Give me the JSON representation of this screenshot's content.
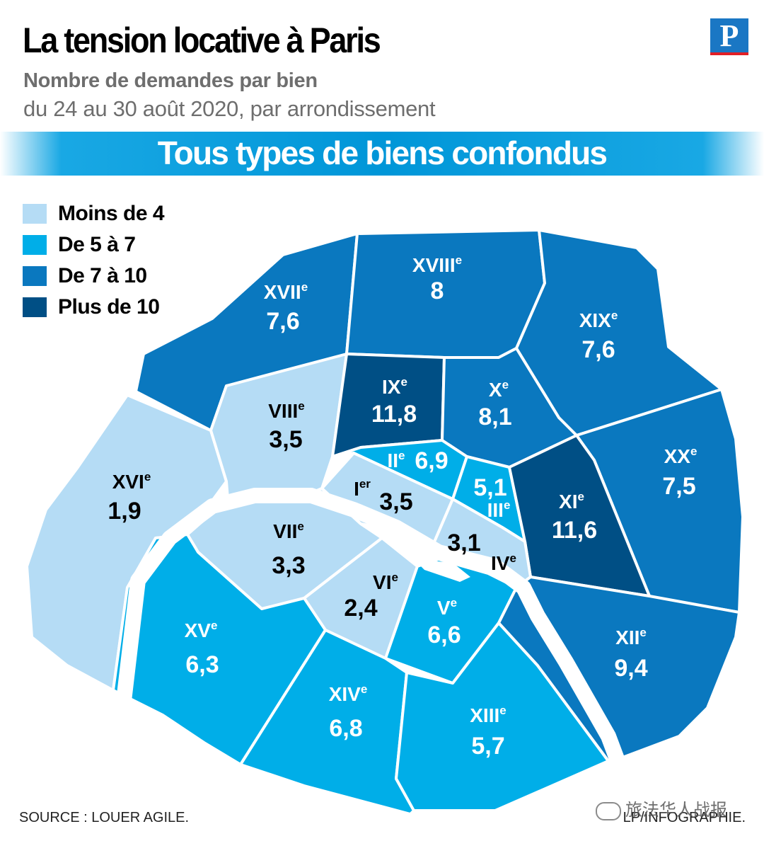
{
  "header": {
    "title": "La tension locative à Paris",
    "subtitle_line1": "Nombre de demandes par bien",
    "subtitle_line2": "du 24 au 30 août 2020,  par arrondissement",
    "logo_letter": "P",
    "banner": "Tous types de biens confondus"
  },
  "legend": [
    {
      "label": "Moins de 4",
      "color": "#b5dcf5"
    },
    {
      "label": "De 5 à 7",
      "color": "#00aee8"
    },
    {
      "label": "De 7 à 10",
      "color": "#0a78bf"
    },
    {
      "label": "Plus de 10",
      "color": "#004f85"
    }
  ],
  "map": {
    "river_color": "#ffffff",
    "arrondissements": [
      {
        "id": "i",
        "roman": "I",
        "sup": "er",
        "value": "3,5",
        "class": "Moins de 4"
      },
      {
        "id": "ii",
        "roman": "II",
        "sup": "e",
        "value": "6,9",
        "class": "De 5 à 7"
      },
      {
        "id": "iii",
        "roman": "III",
        "sup": "e",
        "value": "5,1",
        "class": "De 5 à 7"
      },
      {
        "id": "iv",
        "roman": "IV",
        "sup": "e",
        "value": "3,1",
        "class": "Moins de 4"
      },
      {
        "id": "v",
        "roman": "V",
        "sup": "e",
        "value": "6,6",
        "class": "De 5 à 7"
      },
      {
        "id": "vi",
        "roman": "VI",
        "sup": "e",
        "value": "2,4",
        "class": "Moins de 4"
      },
      {
        "id": "vii",
        "roman": "VII",
        "sup": "e",
        "value": "3,3",
        "class": "Moins de 4"
      },
      {
        "id": "viii",
        "roman": "VIII",
        "sup": "e",
        "value": "3,5",
        "class": "Moins de 4"
      },
      {
        "id": "ix",
        "roman": "IX",
        "sup": "e",
        "value": "11,8",
        "class": "Plus de 10"
      },
      {
        "id": "x",
        "roman": "X",
        "sup": "e",
        "value": "8,1",
        "class": "De 7 à 10"
      },
      {
        "id": "xi",
        "roman": "XI",
        "sup": "e",
        "value": "11,6",
        "class": "Plus de 10"
      },
      {
        "id": "xii",
        "roman": "XII",
        "sup": "e",
        "value": "9,4",
        "class": "De 7 à 10"
      },
      {
        "id": "xiii",
        "roman": "XIII",
        "sup": "e",
        "value": "5,7",
        "class": "De 5 à 7"
      },
      {
        "id": "xiv",
        "roman": "XIV",
        "sup": "e",
        "value": "6,8",
        "class": "De 5 à 7"
      },
      {
        "id": "xv",
        "roman": "XV",
        "sup": "e",
        "value": "6,3",
        "class": "De 5 à 7"
      },
      {
        "id": "xvi",
        "roman": "XVI",
        "sup": "e",
        "value": "1,9",
        "class": "Moins de 4"
      },
      {
        "id": "xvii",
        "roman": "XVII",
        "sup": "e",
        "value": "7,6",
        "class": "De 7 à 10"
      },
      {
        "id": "xviii",
        "roman": "XVIII",
        "sup": "e",
        "value": "8",
        "class": "De 7 à 10"
      },
      {
        "id": "xix",
        "roman": "XIX",
        "sup": "e",
        "value": "7,6",
        "class": "De 7 à 10"
      },
      {
        "id": "xx",
        "roman": "XX",
        "sup": "e",
        "value": "7,5",
        "class": "De 7 à 10"
      }
    ]
  },
  "footer": {
    "source": "SOURCE : LOUER AGILE.",
    "credit": "LP/INFOGRAPHIE.",
    "watermark": "旅法华人战报",
    "watermark_icon": "wechat-icon"
  }
}
